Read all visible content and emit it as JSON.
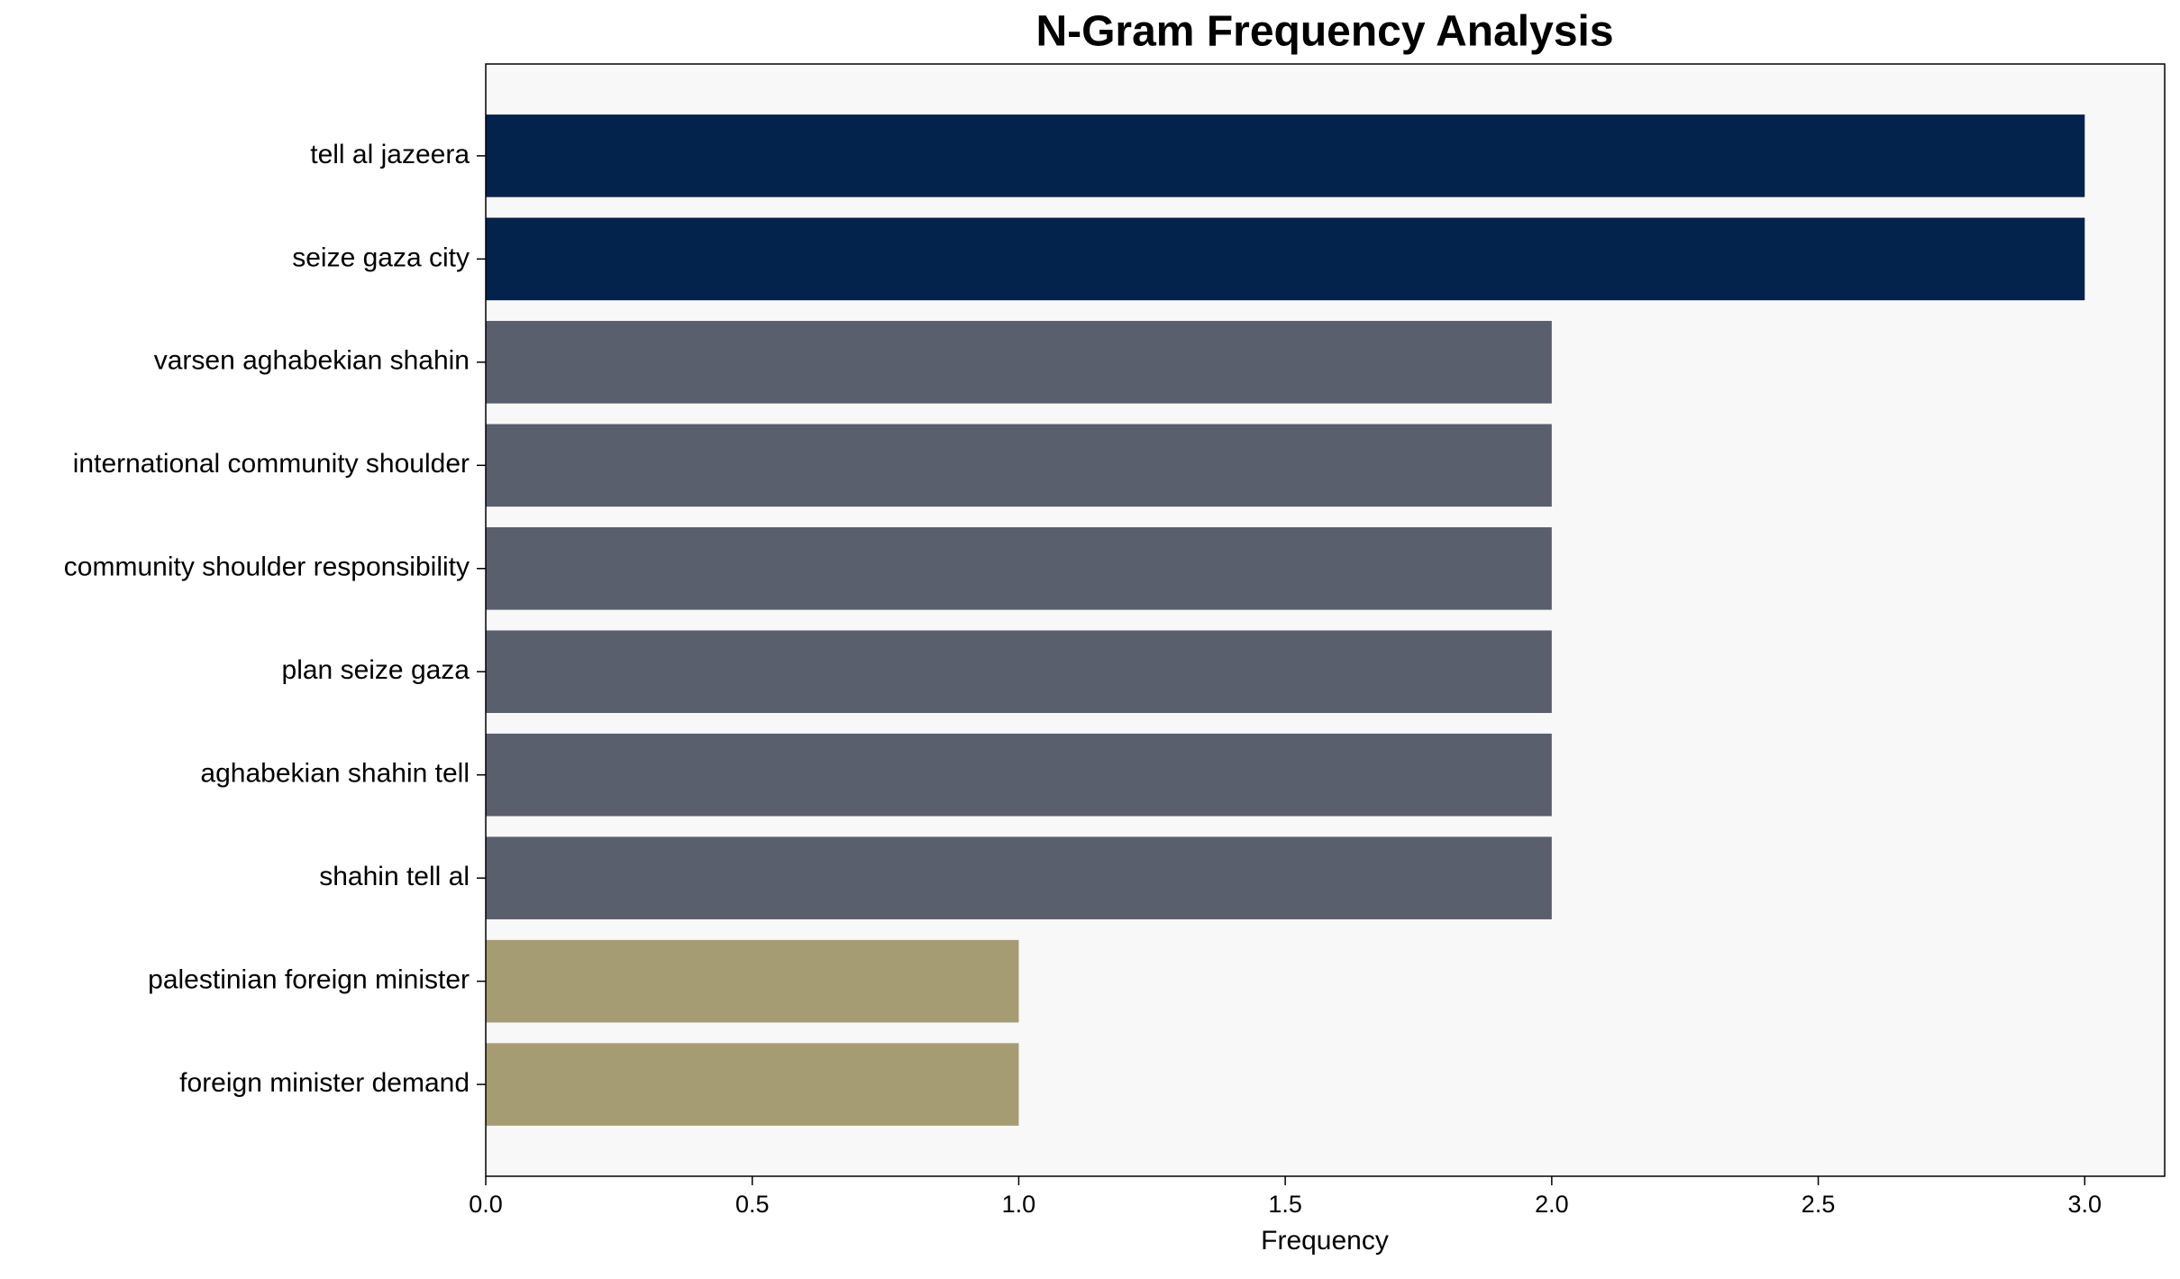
{
  "chart_data": {
    "type": "barh",
    "title": "N-Gram Frequency Analysis",
    "x_label": "Frequency",
    "categories": [
      "tell al jazeera",
      "seize gaza city",
      "varsen aghabekian shahin",
      "international community shoulder",
      "community shoulder responsibility",
      "plan seize gaza",
      "aghabekian shahin tell",
      "shahin tell al",
      "palestinian foreign minister",
      "foreign minister demand"
    ],
    "values": [
      3,
      3,
      2,
      2,
      2,
      2,
      2,
      2,
      1,
      1
    ],
    "colors": [
      "#03224c",
      "#03224c",
      "#5a5f6d",
      "#5a5f6d",
      "#5a5f6d",
      "#5a5f6d",
      "#5a5f6d",
      "#5a5f6d",
      "#a59c74",
      "#a59c74"
    ],
    "xlim": [
      0,
      3.15
    ],
    "xticks": [
      {
        "value": 0,
        "label": "0.0"
      },
      {
        "value": 0.5,
        "label": "0.5"
      },
      {
        "value": 1,
        "label": "1.0"
      },
      {
        "value": 1.5,
        "label": "1.5"
      },
      {
        "value": 2,
        "label": "2.0"
      },
      {
        "value": 2.5,
        "label": "2.5"
      },
      {
        "value": 3,
        "label": "3.0"
      }
    ],
    "background": "#f8f8f8"
  }
}
